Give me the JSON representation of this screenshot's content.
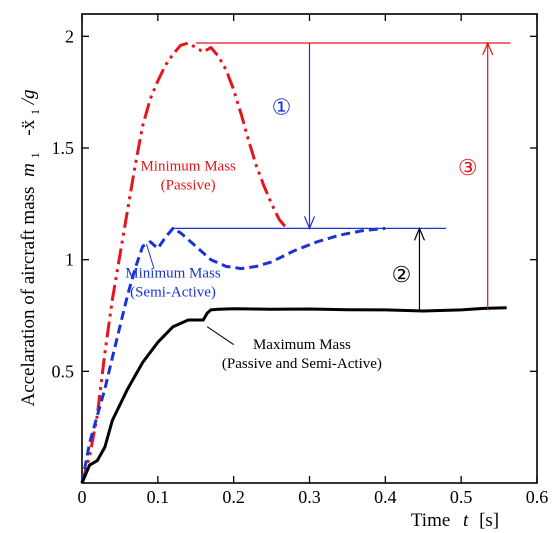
{
  "chart_data": {
    "type": "line",
    "xlabel_prefix": "Time",
    "xlabel_var": "t",
    "xlabel_unit": "[s]",
    "ylabel_prefix": "Accelaration of aircraft mass",
    "ylabel_var": "m",
    "ylabel_sub": "1",
    "ylabel_expr": "-ẍ",
    "ylabel_sub2": "1",
    "ylabel_div": "/g",
    "xlim": [
      0,
      0.6
    ],
    "ylim": [
      0,
      2.1
    ],
    "x_ticks": [
      0,
      0.1,
      0.2,
      0.3,
      0.4,
      0.5,
      0.6
    ],
    "x_tick_labels": [
      "0",
      "0.1",
      "0.2",
      "0.3",
      "0.4",
      "0.5",
      "0.6"
    ],
    "y_ticks": [
      0.5,
      1,
      1.5,
      2
    ],
    "y_tick_labels": [
      "0.5",
      "1",
      "1.5",
      "2"
    ],
    "series": [
      {
        "color": "#e8141c",
        "dash": "dashdotdot",
        "width": 3,
        "x": [
          0.0,
          0.01,
          0.02,
          0.03,
          0.04,
          0.05,
          0.06,
          0.07,
          0.08,
          0.09,
          0.1,
          0.11,
          0.12,
          0.13,
          0.14,
          0.15,
          0.16,
          0.17,
          0.18,
          0.19,
          0.2,
          0.21,
          0.22,
          0.23,
          0.24,
          0.25,
          0.26,
          0.27
        ],
        "y": [
          0.0,
          0.12,
          0.3,
          0.58,
          0.82,
          1.02,
          1.22,
          1.42,
          1.6,
          1.72,
          1.8,
          1.87,
          1.92,
          1.96,
          1.97,
          1.95,
          1.93,
          1.95,
          1.91,
          1.85,
          1.76,
          1.65,
          1.53,
          1.42,
          1.33,
          1.25,
          1.18,
          1.14
        ]
      },
      {
        "color": "#1a33d6",
        "dash": "dashed",
        "width": 3,
        "x": [
          0.0,
          0.01,
          0.02,
          0.03,
          0.04,
          0.05,
          0.06,
          0.07,
          0.08,
          0.09,
          0.1,
          0.11,
          0.12,
          0.13,
          0.15,
          0.17,
          0.19,
          0.21,
          0.23,
          0.25,
          0.28,
          0.31,
          0.34,
          0.37,
          0.4
        ],
        "y": [
          0.0,
          0.18,
          0.3,
          0.42,
          0.56,
          0.7,
          0.84,
          0.96,
          1.06,
          1.08,
          1.05,
          1.1,
          1.14,
          1.12,
          1.06,
          1.0,
          0.97,
          0.96,
          0.97,
          0.99,
          1.04,
          1.08,
          1.11,
          1.13,
          1.14
        ]
      },
      {
        "color": "#000000",
        "dash": "solid",
        "width": 3,
        "x": [
          0.0,
          0.01,
          0.02,
          0.03,
          0.04,
          0.06,
          0.08,
          0.1,
          0.12,
          0.14,
          0.16,
          0.165,
          0.17,
          0.18,
          0.2,
          0.25,
          0.3,
          0.35,
          0.4,
          0.45,
          0.5,
          0.53,
          0.56
        ],
        "y": [
          0.0,
          0.08,
          0.1,
          0.16,
          0.28,
          0.42,
          0.54,
          0.63,
          0.7,
          0.73,
          0.73,
          0.76,
          0.775,
          0.778,
          0.78,
          0.778,
          0.779,
          0.776,
          0.775,
          0.77,
          0.775,
          0.782,
          0.785
        ]
      }
    ],
    "reference_lines": [
      {
        "color": "#e8141c",
        "x1": 0.15,
        "x2": 0.565,
        "y": 1.97
      },
      {
        "color": "#1a33d6",
        "x1": 0.12,
        "x2": 0.48,
        "y": 1.14
      }
    ],
    "arrows": [
      {
        "color": "#1a33d6",
        "x": 0.3,
        "y_from": 1.97,
        "y_to": 1.14,
        "label": "①",
        "label_dx": -28,
        "label_y": 1.65
      },
      {
        "color": "#000000",
        "x": 0.445,
        "y_from": 0.77,
        "y_to": 1.14,
        "label": "②",
        "label_dx": -18,
        "label_y": 0.9
      },
      {
        "color": "#e8141c",
        "x": 0.535,
        "y_from": 0.78,
        "y_to": 1.97,
        "label": "③",
        "label_dx": -20,
        "label_y": 1.38
      }
    ],
    "annotations": [
      {
        "color": "#e8141c",
        "lines": [
          "Minimum Mass",
          "(Passive)"
        ],
        "x": 0.14,
        "y": 1.4,
        "leader": null
      },
      {
        "color": "#1a33d6",
        "lines": [
          "Minimum Mass",
          "(Semi-Active)"
        ],
        "x": 0.12,
        "y": 0.92,
        "leader": [
          0.095,
          0.96,
          0.085,
          1.07
        ]
      },
      {
        "color": "#000000",
        "lines": [
          "Maximum Mass",
          "(Passive and Semi-Active)"
        ],
        "x": 0.29,
        "y": 0.6,
        "leader": [
          0.2,
          0.62,
          0.165,
          0.7
        ]
      }
    ]
  }
}
